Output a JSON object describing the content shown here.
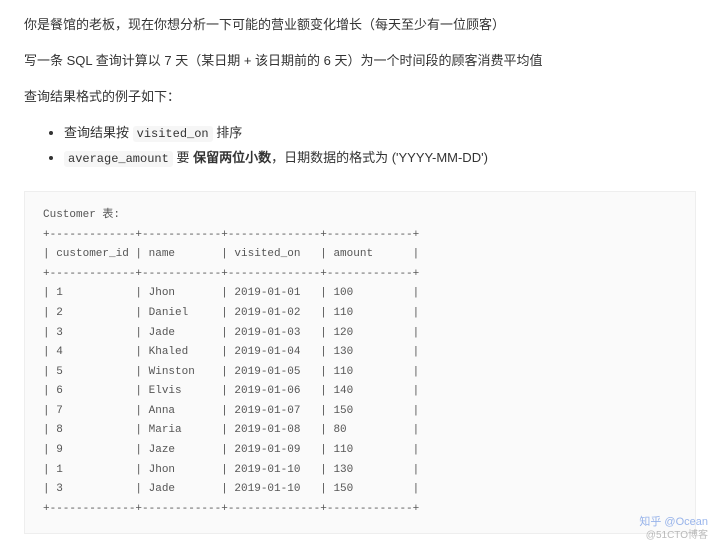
{
  "intro": {
    "line1": "你是餐馆的老板，现在你想分析一下可能的营业额变化增长（每天至少有一位顾客）",
    "line2": "写一条 SQL 查询计算以 7 天（某日期 + 该日期前的 6 天）为一个时间段的顾客消费平均值",
    "line3": "查询结果格式的例子如下："
  },
  "bullets": {
    "b1_prefix": "查询结果按 ",
    "b1_code": "visited_on",
    "b1_suffix": " 排序",
    "b2_code": "average_amount",
    "b2_mid": " 要 ",
    "b2_bold": "保留两位小数",
    "b2_suffix": "，日期数据的格式为 ('YYYY-MM-DD')"
  },
  "table": {
    "title": "Customer 表:",
    "cols": [
      "customer_id",
      "name",
      "visited_on",
      "amount"
    ],
    "sep": "+-------------+------------+--------------+-------------+",
    "header": "| customer_id | name       | visited_on   | amount      |",
    "rows": [
      "| 1           | Jhon       | 2019-01-01   | 100         |",
      "| 2           | Daniel     | 2019-01-02   | 110         |",
      "| 3           | Jade       | 2019-01-03   | 120         |",
      "| 4           | Khaled     | 2019-01-04   | 130         |",
      "| 5           | Winston    | 2019-01-05   | 110         |",
      "| 6           | Elvis      | 2019-01-06   | 140         |",
      "| 7           | Anna       | 2019-01-07   | 150         |",
      "| 8           | Maria      | 2019-01-08   | 80          |",
      "| 9           | Jaze       | 2019-01-09   | 110         |",
      "| 1           | Jhon       | 2019-01-10   | 130         |",
      "| 3           | Jade       | 2019-01-10   | 150         |"
    ]
  },
  "watermark": {
    "line1": "知乎 @Ocean",
    "line2": "@51CTO博客"
  },
  "style": {
    "body_bg": "#ffffff",
    "code_bg": "#fafafa",
    "code_border": "#eeeeee",
    "inline_bg": "#f6f6f6",
    "text_color": "#333333",
    "pre_color": "#555555",
    "body_font_size": 13,
    "pre_font_size": 11
  }
}
